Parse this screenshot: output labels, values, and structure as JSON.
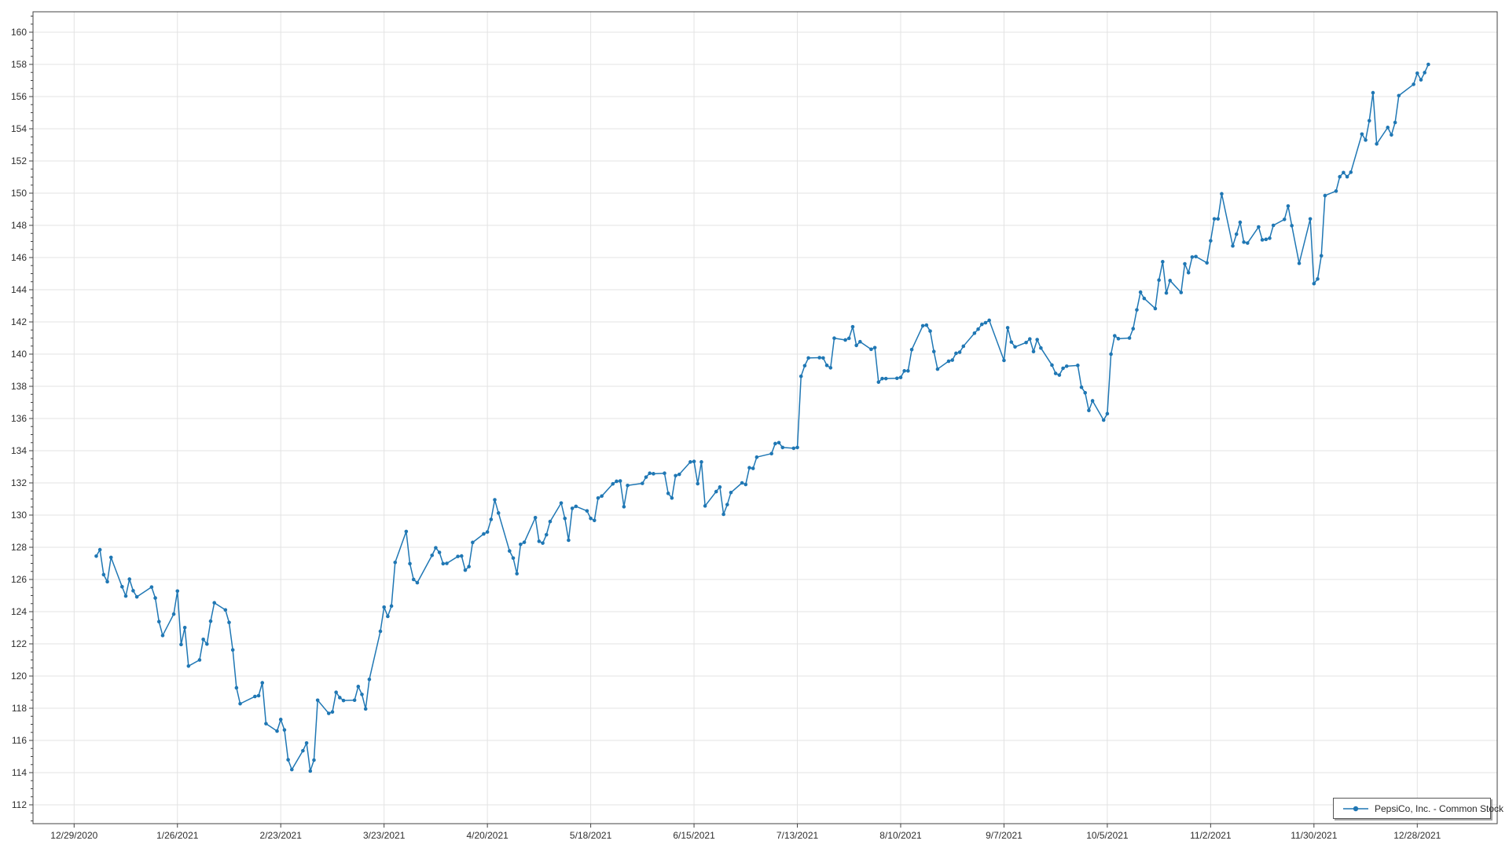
{
  "chart_data": {
    "type": "line",
    "title": "",
    "xlabel": "",
    "ylabel": "",
    "legend": {
      "label": "PepsiCo, Inc. - Common Stock",
      "position": "bottom-right"
    },
    "series_color": "#1f77b4",
    "grid": true,
    "y_axis": {
      "min": 112,
      "max": 160,
      "step": 2,
      "minor_step": 0.5
    },
    "x_ticks": [
      {
        "label": "12/29/2020",
        "date": "2020-12-29"
      },
      {
        "label": "1/26/2021",
        "date": "2021-01-26"
      },
      {
        "label": "2/23/2021",
        "date": "2021-02-23"
      },
      {
        "label": "3/23/2021",
        "date": "2021-03-23"
      },
      {
        "label": "4/20/2021",
        "date": "2021-04-20"
      },
      {
        "label": "5/18/2021",
        "date": "2021-05-18"
      },
      {
        "label": "6/15/2021",
        "date": "2021-06-15"
      },
      {
        "label": "7/13/2021",
        "date": "2021-07-13"
      },
      {
        "label": "8/10/2021",
        "date": "2021-08-10"
      },
      {
        "label": "9/7/2021",
        "date": "2021-09-07"
      },
      {
        "label": "10/5/2021",
        "date": "2021-10-05"
      },
      {
        "label": "11/2/2021",
        "date": "2021-11-02"
      },
      {
        "label": "11/30/2021",
        "date": "2021-11-30"
      },
      {
        "label": "12/28/2021",
        "date": "2021-12-28"
      }
    ],
    "dates": [
      "2021-01-04",
      "2021-01-05",
      "2021-01-06",
      "2021-01-07",
      "2021-01-08",
      "2021-01-11",
      "2021-01-12",
      "2021-01-13",
      "2021-01-14",
      "2021-01-15",
      "2021-01-19",
      "2021-01-20",
      "2021-01-21",
      "2021-01-22",
      "2021-01-25",
      "2021-01-26",
      "2021-01-27",
      "2021-01-28",
      "2021-01-29",
      "2021-02-01",
      "2021-02-02",
      "2021-02-03",
      "2021-02-04",
      "2021-02-05",
      "2021-02-08",
      "2021-02-09",
      "2021-02-10",
      "2021-02-11",
      "2021-02-12",
      "2021-02-16",
      "2021-02-17",
      "2021-02-18",
      "2021-02-19",
      "2021-02-22",
      "2021-02-23",
      "2021-02-24",
      "2021-02-25",
      "2021-02-26",
      "2021-03-01",
      "2021-03-02",
      "2021-03-03",
      "2021-03-04",
      "2021-03-05",
      "2021-03-08",
      "2021-03-09",
      "2021-03-10",
      "2021-03-11",
      "2021-03-12",
      "2021-03-15",
      "2021-03-16",
      "2021-03-17",
      "2021-03-18",
      "2021-03-19",
      "2021-03-22",
      "2021-03-23",
      "2021-03-24",
      "2021-03-25",
      "2021-03-26",
      "2021-03-29",
      "2021-03-30",
      "2021-03-31",
      "2021-04-01",
      "2021-04-05",
      "2021-04-06",
      "2021-04-07",
      "2021-04-08",
      "2021-04-09",
      "2021-04-12",
      "2021-04-13",
      "2021-04-14",
      "2021-04-15",
      "2021-04-16",
      "2021-04-19",
      "2021-04-20",
      "2021-04-21",
      "2021-04-22",
      "2021-04-23",
      "2021-04-26",
      "2021-04-27",
      "2021-04-28",
      "2021-04-29",
      "2021-04-30",
      "2021-05-03",
      "2021-05-04",
      "2021-05-05",
      "2021-05-06",
      "2021-05-07",
      "2021-05-10",
      "2021-05-11",
      "2021-05-12",
      "2021-05-13",
      "2021-05-14",
      "2021-05-17",
      "2021-05-18",
      "2021-05-19",
      "2021-05-20",
      "2021-05-21",
      "2021-05-24",
      "2021-05-25",
      "2021-05-26",
      "2021-05-27",
      "2021-05-28",
      "2021-06-01",
      "2021-06-02",
      "2021-06-03",
      "2021-06-04",
      "2021-06-07",
      "2021-06-08",
      "2021-06-09",
      "2021-06-10",
      "2021-06-11",
      "2021-06-14",
      "2021-06-15",
      "2021-06-16",
      "2021-06-17",
      "2021-06-18",
      "2021-06-21",
      "2021-06-22",
      "2021-06-23",
      "2021-06-24",
      "2021-06-25",
      "2021-06-28",
      "2021-06-29",
      "2021-06-30",
      "2021-07-01",
      "2021-07-02",
      "2021-07-06",
      "2021-07-07",
      "2021-07-08",
      "2021-07-09",
      "2021-07-12",
      "2021-07-13",
      "2021-07-14",
      "2021-07-15",
      "2021-07-16",
      "2021-07-19",
      "2021-07-20",
      "2021-07-21",
      "2021-07-22",
      "2021-07-23",
      "2021-07-26",
      "2021-07-27",
      "2021-07-28",
      "2021-07-29",
      "2021-07-30",
      "2021-08-02",
      "2021-08-03",
      "2021-08-04",
      "2021-08-05",
      "2021-08-06",
      "2021-08-09",
      "2021-08-10",
      "2021-08-11",
      "2021-08-12",
      "2021-08-13",
      "2021-08-16",
      "2021-08-17",
      "2021-08-18",
      "2021-08-19",
      "2021-08-20",
      "2021-08-23",
      "2021-08-24",
      "2021-08-25",
      "2021-08-26",
      "2021-08-27",
      "2021-08-30",
      "2021-08-31",
      "2021-09-01",
      "2021-09-02",
      "2021-09-03",
      "2021-09-07",
      "2021-09-08",
      "2021-09-09",
      "2021-09-10",
      "2021-09-13",
      "2021-09-14",
      "2021-09-15",
      "2021-09-16",
      "2021-09-17",
      "2021-09-20",
      "2021-09-21",
      "2021-09-22",
      "2021-09-23",
      "2021-09-24",
      "2021-09-27",
      "2021-09-28",
      "2021-09-29",
      "2021-09-30",
      "2021-10-01",
      "2021-10-04",
      "2021-10-05",
      "2021-10-06",
      "2021-10-07",
      "2021-10-08",
      "2021-10-11",
      "2021-10-12",
      "2021-10-13",
      "2021-10-14",
      "2021-10-15",
      "2021-10-18",
      "2021-10-19",
      "2021-10-20",
      "2021-10-21",
      "2021-10-22",
      "2021-10-25",
      "2021-10-26",
      "2021-10-27",
      "2021-10-28",
      "2021-10-29",
      "2021-11-01",
      "2021-11-02",
      "2021-11-03",
      "2021-11-04",
      "2021-11-05",
      "2021-11-08",
      "2021-11-09",
      "2021-11-10",
      "2021-11-11",
      "2021-11-12",
      "2021-11-15",
      "2021-11-16",
      "2021-11-17",
      "2021-11-18",
      "2021-11-19",
      "2021-11-22",
      "2021-11-23",
      "2021-11-24",
      "2021-11-26",
      "2021-11-29",
      "2021-11-30",
      "2021-12-01",
      "2021-12-02",
      "2021-12-03",
      "2021-12-06",
      "2021-12-07",
      "2021-12-08",
      "2021-12-09",
      "2021-12-10",
      "2021-12-13",
      "2021-12-14",
      "2021-12-15",
      "2021-12-16",
      "2021-12-17",
      "2021-12-20",
      "2021-12-21",
      "2021-12-22",
      "2021-12-23",
      "2021-12-27",
      "2021-12-28",
      "2021-12-29",
      "2021-12-30",
      "2021-12-31"
    ],
    "values": [
      127.45,
      127.85,
      126.3,
      125.86,
      127.37,
      125.55,
      124.97,
      126.02,
      125.3,
      124.92,
      125.53,
      124.85,
      123.38,
      122.52,
      123.85,
      125.28,
      121.96,
      123.01,
      120.62,
      121.0,
      122.28,
      121.99,
      123.41,
      124.55,
      124.11,
      123.33,
      121.62,
      119.27,
      118.28,
      118.73,
      118.78,
      119.58,
      117.04,
      116.58,
      117.3,
      116.65,
      114.8,
      114.19,
      115.36,
      115.84,
      114.1,
      114.78,
      118.5,
      117.68,
      117.77,
      118.99,
      118.66,
      118.48,
      118.5,
      119.35,
      118.86,
      117.96,
      119.79,
      122.78,
      124.28,
      123.71,
      124.35,
      127.06,
      128.98,
      126.98,
      126.0,
      125.8,
      127.5,
      127.97,
      127.68,
      126.98,
      127.0,
      127.43,
      127.46,
      126.58,
      126.8,
      128.3,
      128.83,
      128.95,
      129.73,
      130.95,
      130.13,
      127.77,
      127.33,
      126.36,
      128.18,
      128.31,
      129.84,
      128.37,
      128.26,
      128.78,
      129.6,
      130.75,
      129.79,
      128.44,
      130.42,
      130.54,
      130.26,
      129.79,
      129.67,
      131.06,
      131.18,
      131.94,
      132.1,
      132.12,
      130.52,
      131.84,
      131.97,
      132.36,
      132.6,
      132.57,
      132.6,
      131.35,
      131.06,
      132.45,
      132.53,
      133.3,
      133.33,
      131.95,
      133.3,
      130.57,
      131.46,
      131.74,
      130.05,
      130.65,
      131.4,
      132.0,
      131.9,
      132.94,
      132.9,
      133.6,
      133.82,
      134.44,
      134.5,
      134.2,
      134.15,
      134.2,
      138.62,
      139.28,
      139.76,
      139.78,
      139.76,
      139.3,
      139.15,
      140.99,
      140.88,
      140.98,
      141.7,
      140.54,
      140.77,
      140.3,
      140.4,
      138.26,
      138.48,
      138.48,
      138.5,
      138.55,
      138.96,
      138.96,
      140.28,
      141.76,
      141.8,
      141.43,
      140.16,
      139.07,
      139.56,
      139.63,
      140.05,
      140.12,
      140.49,
      141.3,
      141.55,
      141.85,
      141.95,
      142.1,
      139.61,
      141.64,
      140.75,
      140.45,
      140.72,
      140.94,
      140.16,
      140.9,
      140.38,
      139.32,
      138.8,
      138.7,
      139.12,
      139.25,
      139.3,
      137.94,
      137.6,
      136.5,
      137.1,
      135.9,
      136.3,
      140.0,
      141.14,
      140.96,
      141.0,
      141.58,
      142.75,
      143.85,
      143.46,
      142.83,
      144.6,
      145.74,
      143.8,
      144.57,
      143.83,
      145.61,
      145.06,
      146.03,
      146.06,
      145.67,
      147.04,
      148.4,
      148.4,
      149.96,
      146.72,
      147.45,
      148.19,
      146.96,
      146.9,
      147.9,
      147.1,
      147.13,
      147.2,
      148.0,
      148.37,
      149.2,
      147.98,
      145.64,
      148.4,
      144.38,
      144.67,
      146.11,
      149.85,
      150.13,
      151.02,
      151.28,
      151.02,
      151.3,
      153.67,
      153.3,
      154.5,
      156.24,
      153.06,
      154.08,
      153.62,
      154.39,
      156.06,
      156.76,
      157.45,
      157.04,
      157.49,
      158.0
    ]
  },
  "colors": {
    "line": "#1f77b4",
    "grid": "#e3e3e3",
    "axis": "#434343",
    "tick_label": "#2e2e2e",
    "background": "#ffffff"
  }
}
